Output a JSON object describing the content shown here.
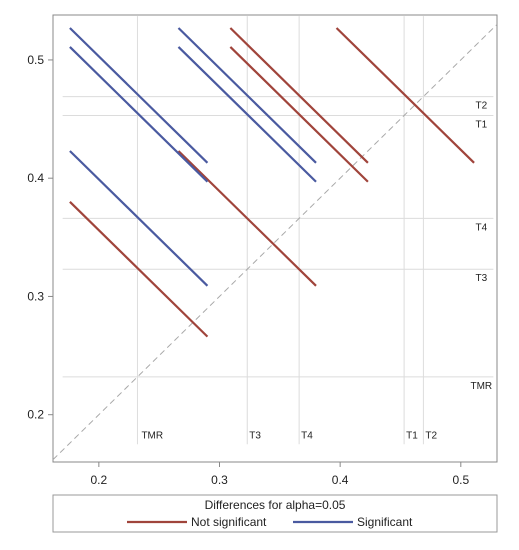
{
  "chart_data": {
    "type": "line",
    "title": "",
    "xlabel": "",
    "ylabel": "",
    "xlim": [
      0.162,
      0.53
    ],
    "ylim": [
      0.16,
      0.538
    ],
    "x_ticks": [
      0.2,
      0.3,
      0.4,
      0.5
    ],
    "x_tick_labels": [
      "0.2",
      "0.3",
      "0.4",
      "0.5"
    ],
    "y_ticks": [
      0.2,
      0.3,
      0.4,
      0.5
    ],
    "y_tick_labels": [
      "0.2",
      "0.3",
      "0.4",
      "0.5"
    ],
    "grid": false,
    "diagonal_reference": true,
    "reference_lines": [
      {
        "label": "TMR",
        "value": 0.232
      },
      {
        "label": "T3",
        "value": 0.323
      },
      {
        "label": "T4",
        "value": 0.366
      },
      {
        "label": "T1",
        "value": 0.453
      },
      {
        "label": "T2",
        "value": 0.469
      }
    ],
    "series": [
      {
        "name": "Not significant",
        "color": "#a0443b",
        "segments": [
          [
            [
              0.176,
              0.38
            ],
            [
              0.29,
              0.266
            ]
          ],
          [
            [
              0.266,
              0.423
            ],
            [
              0.38,
              0.309
            ]
          ],
          [
            [
              0.309,
              0.527
            ],
            [
              0.423,
              0.413
            ]
          ],
          [
            [
              0.309,
              0.511
            ],
            [
              0.423,
              0.397
            ]
          ],
          [
            [
              0.397,
              0.527
            ],
            [
              0.511,
              0.413
            ]
          ]
        ]
      },
      {
        "name": "Significant",
        "color": "#4a5aa0",
        "segments": [
          [
            [
              0.176,
              0.527
            ],
            [
              0.29,
              0.413
            ]
          ],
          [
            [
              0.176,
              0.511
            ],
            [
              0.29,
              0.397
            ]
          ],
          [
            [
              0.176,
              0.423
            ],
            [
              0.29,
              0.309
            ]
          ],
          [
            [
              0.266,
              0.527
            ],
            [
              0.38,
              0.413
            ]
          ],
          [
            [
              0.266,
              0.511
            ],
            [
              0.38,
              0.397
            ]
          ]
        ]
      }
    ],
    "legend": {
      "title": "Differences for alpha=0.05",
      "position": "bottom",
      "entries": [
        "Not significant",
        "Significant"
      ]
    }
  }
}
